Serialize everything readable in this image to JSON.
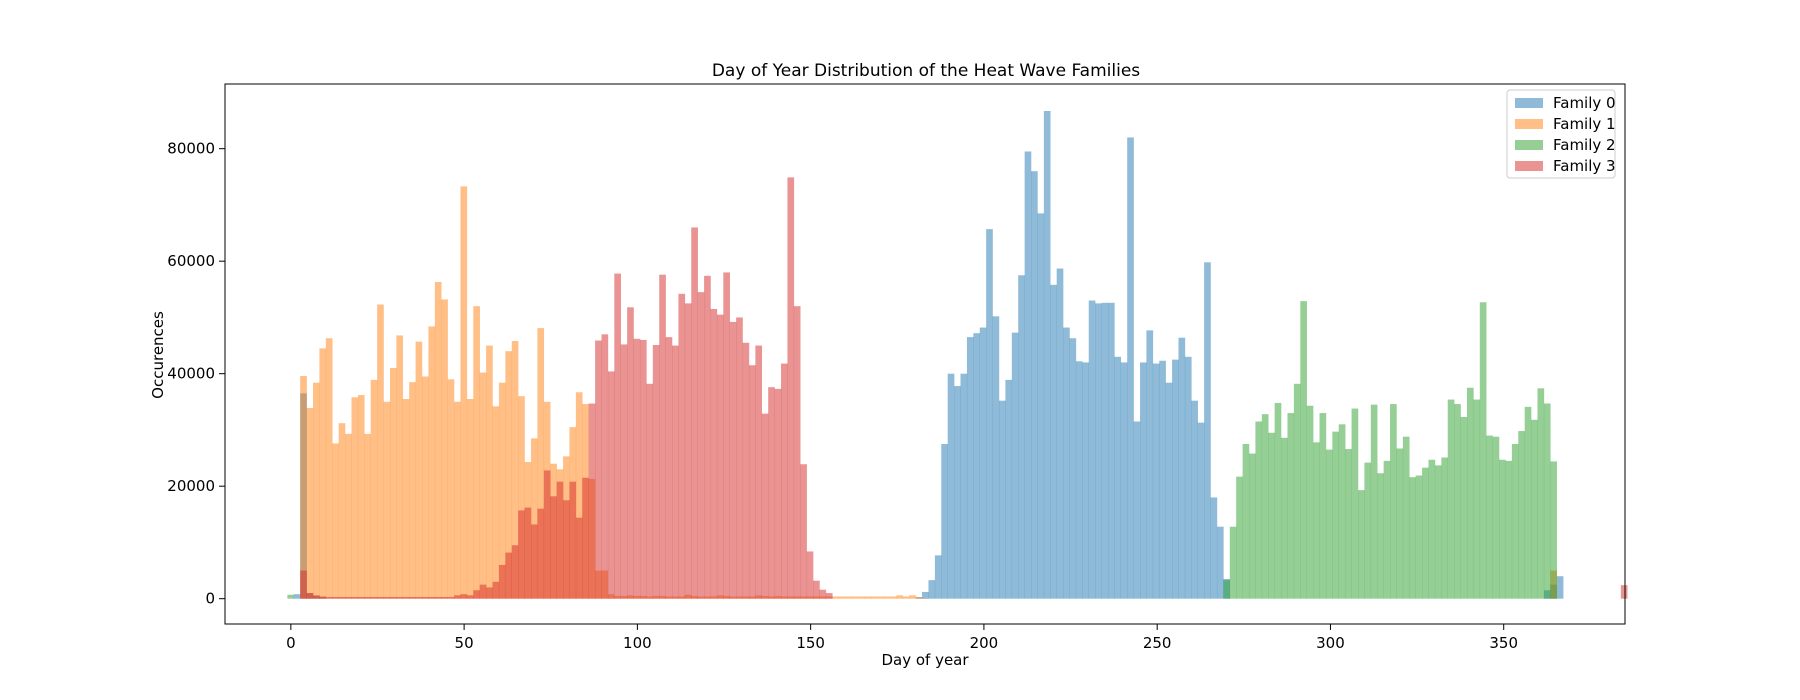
{
  "chart_data": {
    "type": "histogram",
    "title": "Day of Year Distribution of the Heat Wave Families",
    "xlabel": "Day of year",
    "ylabel": "Occurences",
    "xlim": [
      -19,
      385
    ],
    "ylim": [
      -4500,
      91500
    ],
    "xticks": [
      0,
      50,
      100,
      150,
      200,
      250,
      300,
      350
    ],
    "yticks": [
      0,
      20000,
      40000,
      60000,
      80000
    ],
    "xtick_labels": [
      "0",
      "50",
      "100",
      "150",
      "200",
      "250",
      "300",
      "350"
    ],
    "ytick_labels": [
      "0",
      "20000",
      "40000",
      "60000",
      "80000"
    ],
    "bins": {
      "start": -1,
      "width": 1.85,
      "count": 199
    },
    "legend_position": "top-right",
    "grid": false,
    "series": [
      {
        "name": "Family 0",
        "color": "#1f77b4",
        "opacity": 0.5,
        "values": [
          0,
          800,
          36500,
          1000,
          500,
          300,
          0,
          0,
          0,
          0,
          0,
          0,
          0,
          0,
          0,
          0,
          0,
          0,
          0,
          0,
          0,
          0,
          0,
          0,
          0,
          0,
          0,
          0,
          0,
          0,
          0,
          0,
          0,
          0,
          0,
          0,
          0,
          0,
          0,
          0,
          0,
          0,
          0,
          0,
          0,
          0,
          0,
          0,
          0,
          0,
          0,
          0,
          0,
          0,
          0,
          0,
          0,
          0,
          0,
          0,
          0,
          0,
          0,
          0,
          0,
          0,
          0,
          0,
          0,
          0,
          0,
          0,
          0,
          0,
          0,
          0,
          0,
          0,
          0,
          0,
          0,
          0,
          0,
          0,
          0,
          0,
          0,
          0,
          0,
          0,
          0,
          0,
          0,
          0,
          0,
          0,
          0,
          0,
          300,
          1200,
          3300,
          7700,
          27500,
          40000,
          37800,
          40000,
          46500,
          47200,
          48200,
          65700,
          50200,
          35200,
          38900,
          47300,
          57500,
          79500,
          76000,
          68500,
          86700,
          55800,
          58700,
          48200,
          46300,
          42200,
          42000,
          53000,
          52500,
          52600,
          52600,
          43000,
          42000,
          82000,
          31500,
          42000,
          47700,
          41800,
          42300,
          38400,
          42500,
          46400,
          43000,
          35200,
          31300,
          59800,
          18000,
          12800,
          3500,
          0,
          0,
          0,
          0,
          0,
          0,
          0,
          0,
          0,
          0,
          0,
          0,
          0,
          0,
          0,
          0,
          0,
          0,
          0,
          0,
          0,
          0,
          0,
          0,
          0,
          0,
          0,
          0,
          0,
          0,
          0,
          0,
          0,
          0,
          0,
          0,
          0,
          0,
          0,
          0,
          0,
          0,
          0,
          0,
          0,
          0,
          0,
          0,
          0,
          1500,
          2500,
          4000
        ]
      },
      {
        "name": "Family 1",
        "color": "#ff7f0e",
        "opacity": 0.5,
        "values": [
          0,
          0,
          39600,
          33900,
          38400,
          44500,
          46300,
          27600,
          31200,
          29300,
          35800,
          36200,
          29300,
          38900,
          52300,
          35000,
          41000,
          46800,
          35500,
          38500,
          45700,
          39500,
          48400,
          56300,
          53200,
          39000,
          35000,
          73300,
          35500,
          52000,
          40200,
          45000,
          34200,
          38400,
          44000,
          45800,
          36000,
          24300,
          28500,
          48100,
          35000,
          24000,
          23000,
          25300,
          30500,
          36700,
          34600,
          21300,
          5000,
          5000,
          800,
          500,
          500,
          600,
          500,
          500,
          400,
          500,
          500,
          400,
          400,
          400,
          700,
          500,
          400,
          400,
          400,
          600,
          500,
          400,
          400,
          400,
          400,
          600,
          500,
          400,
          500,
          400,
          400,
          400,
          400,
          400,
          400,
          400,
          400,
          400,
          400,
          400,
          400,
          400,
          400,
          400,
          400,
          400,
          400,
          600,
          400,
          600,
          200,
          100,
          0,
          0,
          0,
          0,
          0,
          0,
          0,
          0,
          0,
          0,
          0,
          0,
          0,
          0,
          0,
          0,
          0,
          0,
          0,
          0,
          0,
          0,
          0,
          0,
          0,
          0,
          0,
          0,
          0,
          0,
          0,
          0,
          0,
          0,
          0,
          0,
          0,
          0,
          0,
          0,
          0,
          0,
          0,
          0,
          0,
          0,
          0,
          0,
          0,
          0,
          0,
          0,
          0,
          0,
          0,
          0,
          0,
          0,
          0,
          0,
          0,
          0,
          0,
          0,
          0,
          0,
          0,
          0,
          0,
          0,
          0,
          0,
          0,
          0,
          0,
          0,
          0,
          0,
          0,
          0,
          0,
          0,
          0,
          0,
          0,
          0,
          0,
          0,
          0,
          0,
          0,
          0,
          0,
          0,
          0,
          0,
          0,
          5000
        ]
      },
      {
        "name": "Family 2",
        "color": "#2ca02c",
        "opacity": 0.5,
        "values": [
          700,
          0,
          0,
          0,
          0,
          0,
          0,
          0,
          0,
          0,
          0,
          0,
          0,
          0,
          0,
          0,
          0,
          0,
          0,
          0,
          0,
          0,
          0,
          0,
          0,
          0,
          0,
          0,
          0,
          0,
          0,
          0,
          0,
          0,
          0,
          0,
          0,
          0,
          0,
          0,
          0,
          0,
          0,
          0,
          0,
          0,
          0,
          0,
          0,
          0,
          0,
          0,
          0,
          0,
          0,
          0,
          0,
          0,
          0,
          0,
          0,
          0,
          0,
          0,
          0,
          0,
          0,
          0,
          0,
          0,
          0,
          0,
          0,
          0,
          0,
          0,
          0,
          0,
          0,
          0,
          0,
          0,
          0,
          0,
          0,
          0,
          0,
          0,
          0,
          0,
          0,
          0,
          0,
          0,
          0,
          0,
          0,
          0,
          0,
          0,
          0,
          0,
          0,
          0,
          0,
          0,
          0,
          0,
          0,
          0,
          0,
          0,
          0,
          0,
          0,
          0,
          0,
          0,
          0,
          0,
          0,
          0,
          0,
          0,
          0,
          0,
          0,
          0,
          0,
          0,
          0,
          0,
          0,
          0,
          0,
          0,
          0,
          0,
          0,
          0,
          0,
          0,
          0,
          0,
          0,
          0,
          3300,
          12800,
          21700,
          27500,
          25800,
          31500,
          32800,
          29500,
          34800,
          28600,
          33000,
          38200,
          52900,
          34300,
          27800,
          33000,
          26500,
          29700,
          31000,
          26600,
          33800,
          19300,
          24200,
          34500,
          22300,
          24500,
          34600,
          26700,
          28800,
          21600,
          21900,
          23300,
          24700,
          23700,
          25100,
          35400,
          34600,
          32300,
          37500,
          35400,
          52700,
          29000,
          28800,
          24700,
          24500,
          27500,
          29800,
          34100,
          31800,
          37400,
          34700,
          24400
        ]
      },
      {
        "name": "Family 3",
        "color": "#d62728",
        "opacity": 0.5,
        "values": [
          0,
          0,
          5000,
          1000,
          600,
          400,
          300,
          300,
          300,
          300,
          300,
          300,
          300,
          300,
          300,
          300,
          300,
          300,
          300,
          300,
          300,
          300,
          300,
          300,
          300,
          300,
          600,
          800,
          600,
          1500,
          2500,
          2000,
          3000,
          6000,
          8200,
          9500,
          15700,
          16200,
          13200,
          16000,
          22800,
          18200,
          20800,
          17500,
          20800,
          14400,
          21500,
          34700,
          45900,
          47000,
          40400,
          57800,
          45200,
          51800,
          46200,
          46000,
          38200,
          45100,
          57600,
          46500,
          45000,
          54200,
          52500,
          66000,
          54500,
          57400,
          51500,
          50500,
          58000,
          49200,
          50000,
          45500,
          41500,
          45000,
          32900,
          37600,
          37300,
          41800,
          74900,
          52000,
          23900,
          8400,
          3200,
          1600,
          1000,
          0,
          0,
          0,
          0,
          0,
          0,
          0,
          0,
          0,
          0,
          0,
          0,
          0,
          0,
          0,
          0,
          0,
          0,
          0,
          0,
          0,
          0,
          0,
          0,
          0,
          0,
          0,
          0,
          0,
          0,
          0,
          0,
          0,
          0,
          0,
          0,
          0,
          0,
          0,
          0,
          0,
          0,
          0,
          0,
          0,
          0,
          0,
          0,
          0,
          0,
          0,
          0,
          0,
          0,
          0,
          0,
          0,
          0,
          0,
          0,
          0,
          0,
          0,
          0,
          0,
          0,
          0,
          0,
          0,
          0,
          0,
          0,
          0,
          0,
          0,
          0,
          0,
          0,
          0,
          0,
          0,
          0,
          0,
          0,
          0,
          0,
          0,
          0,
          0,
          0,
          0,
          0,
          0,
          0,
          0,
          0,
          0,
          0,
          0,
          0,
          0,
          0,
          0,
          0,
          0,
          0,
          0,
          0,
          0,
          0,
          0,
          0,
          0,
          0,
          0,
          0,
          0,
          0,
          0,
          0,
          0,
          0,
          0,
          2400
        ]
      }
    ]
  }
}
